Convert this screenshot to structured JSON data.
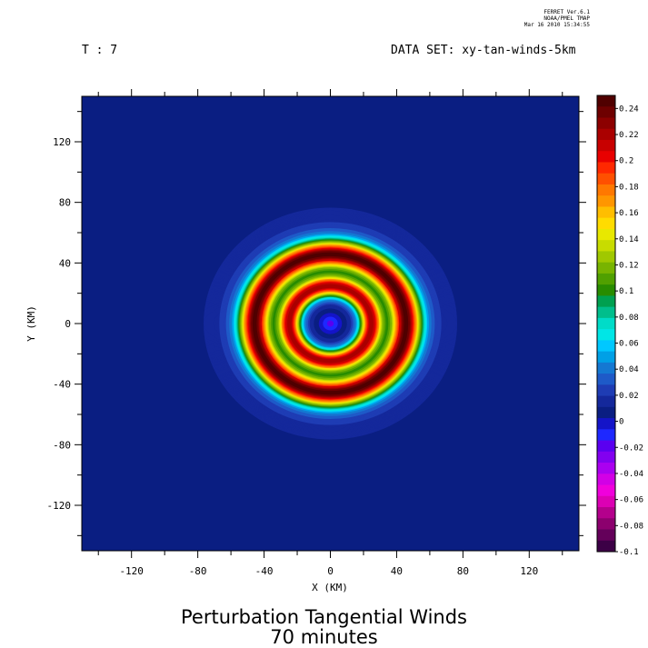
{
  "header": {
    "program_lines": [
      "FERRET Ver.6.1",
      "NOAA/PMEL TMAP",
      "Mar 16 2010 15:34:55"
    ],
    "time_label": "T : 7",
    "dataset_label": "DATA SET: xy-tan-winds-5km"
  },
  "title": {
    "line1": "Perturbation Tangential Winds",
    "line2": "70 minutes"
  },
  "chart_data": {
    "type": "heatmap",
    "xlabel": "X (KM)",
    "ylabel": "Y (KM)",
    "xlim": [
      -150,
      150
    ],
    "ylim": [
      -150,
      150
    ],
    "x_ticks": [
      -120,
      -80,
      -40,
      0,
      40,
      80,
      120
    ],
    "y_ticks": [
      -120,
      -80,
      -40,
      0,
      40,
      80,
      120
    ],
    "colorbar": {
      "min": -0.1,
      "max": 0.25,
      "step": 0.01,
      "labels": [
        "0.24",
        "0.22",
        "0.2",
        "0.18",
        "0.16",
        "0.14",
        "0.12",
        "0.1",
        "0.08",
        "0.06",
        "0.04",
        "0.02",
        "0",
        "-0.02",
        "-0.04",
        "-0.06",
        "-0.08",
        "-0.1"
      ],
      "colors": [
        "#500000",
        "#6e0000",
        "#8c0000",
        "#aa0000",
        "#c80000",
        "#e80000",
        "#ff2800",
        "#ff5000",
        "#ff7800",
        "#ff9600",
        "#ffbe00",
        "#ffdc00",
        "#e8e800",
        "#c8dc00",
        "#a0c800",
        "#78b400",
        "#50a000",
        "#288c00",
        "#00a050",
        "#00be8c",
        "#00dcc8",
        "#00e6e6",
        "#00c8ff",
        "#00a0e6",
        "#1478d2",
        "#1e5ac8",
        "#1e3cb4",
        "#14289b",
        "#0a1e82",
        "#1414c8",
        "#1e28ff",
        "#5a00f0",
        "#8200f0",
        "#aa00f0",
        "#d200e6",
        "#f000dc",
        "#dc00b4",
        "#b4008c",
        "#8c006e",
        "#64005a",
        "#3c0046"
      ]
    },
    "field_description_values": {
      "background": 0.005,
      "inner_ring_radius_km": 25,
      "inner_ring_peak": 0.2,
      "outer_ring_radius_km": 46,
      "outer_ring_peak": 0.21,
      "eye_min": -0.025
    }
  }
}
